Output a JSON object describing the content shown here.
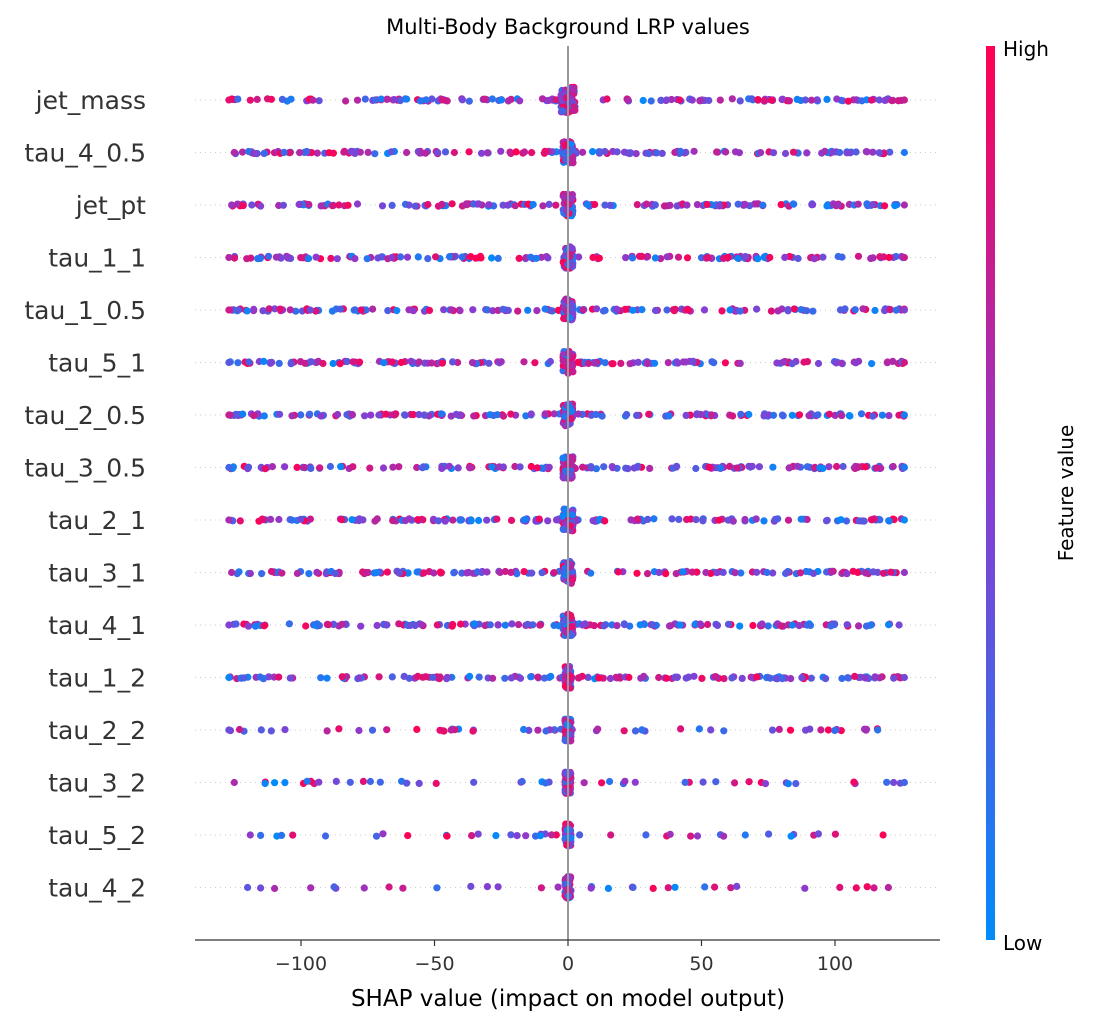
{
  "chart_data": {
    "type": "scatter",
    "title": "Multi-Body Background LRP values",
    "xlabel": "SHAP value (impact on model output)",
    "xlim": [
      -140,
      140
    ],
    "xticks": [
      -100,
      -50,
      0,
      50,
      100
    ],
    "xtick_labels": [
      "−100",
      "−50",
      "0",
      "50",
      "100"
    ],
    "features": [
      {
        "name": "jet_mass",
        "min": -127,
        "max": 126
      },
      {
        "name": "tau_4_0.5",
        "min": -125,
        "max": 126
      },
      {
        "name": "jet_pt",
        "min": -126,
        "max": 126
      },
      {
        "name": "tau_1_1",
        "min": -127,
        "max": 126
      },
      {
        "name": "tau_1_0.5",
        "min": -127,
        "max": 126
      },
      {
        "name": "tau_5_1",
        "min": -127,
        "max": 126
      },
      {
        "name": "tau_2_0.5",
        "min": -127,
        "max": 126
      },
      {
        "name": "tau_3_0.5",
        "min": -127,
        "max": 126
      },
      {
        "name": "tau_2_1",
        "min": -127,
        "max": 126
      },
      {
        "name": "tau_3_1",
        "min": -126,
        "max": 126
      },
      {
        "name": "tau_4_1",
        "min": -127,
        "max": 124
      },
      {
        "name": "tau_1_2",
        "min": -127,
        "max": 126
      },
      {
        "name": "tau_2_2",
        "min": -127,
        "max": 116
      },
      {
        "name": "tau_3_2",
        "min": -125,
        "max": 126
      },
      {
        "name": "tau_5_2",
        "min": -119,
        "max": 118
      },
      {
        "name": "tau_4_2",
        "min": -120,
        "max": 120
      }
    ],
    "colorbar": {
      "label": "Feature value",
      "high": "High",
      "low": "Low",
      "high_color": "#ff0052",
      "low_color": "#008bfb"
    },
    "grid": false,
    "legend": "colorbar-right"
  }
}
